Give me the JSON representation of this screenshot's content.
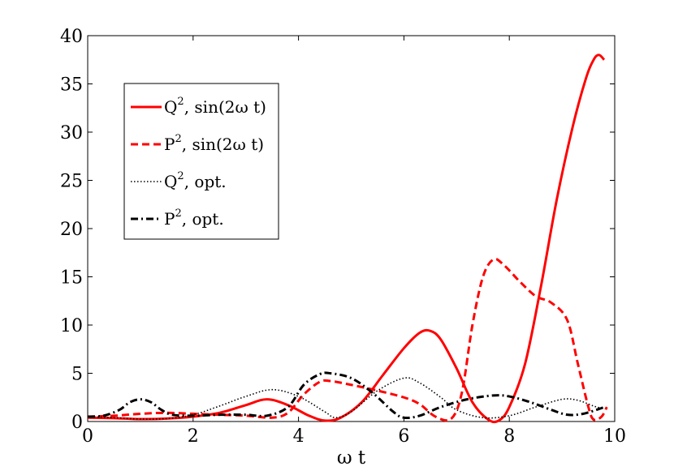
{
  "chart_data": {
    "type": "line",
    "xlabel": "ω t",
    "ylabel": "",
    "xlim": [
      0,
      10
    ],
    "ylim": [
      0,
      40
    ],
    "x_ticks": [
      "0",
      "2",
      "4",
      "6",
      "8",
      "10"
    ],
    "y_ticks": [
      "0",
      "5",
      "10",
      "15",
      "20",
      "25",
      "30",
      "35",
      "40"
    ],
    "grid": false,
    "legend_position": "upper-left",
    "series": [
      {
        "name": "Q², sin(2ω t)",
        "legend": {
          "base": "Q",
          "sup": "2",
          "rest": ", sin(2ω t)"
        },
        "color": "#ff0000",
        "style": "solid",
        "points": [
          [
            0,
            0.4
          ],
          [
            0.5,
            0.35
          ],
          [
            1.0,
            0.25
          ],
          [
            1.5,
            0.3
          ],
          [
            2.0,
            0.5
          ],
          [
            2.5,
            0.9
          ],
          [
            3.0,
            1.7
          ],
          [
            3.4,
            2.3
          ],
          [
            3.8,
            1.7
          ],
          [
            4.2,
            0.6
          ],
          [
            4.5,
            0.1
          ],
          [
            4.8,
            0.4
          ],
          [
            5.2,
            2.0
          ],
          [
            5.6,
            4.8
          ],
          [
            6.0,
            7.6
          ],
          [
            6.3,
            9.2
          ],
          [
            6.5,
            9.4
          ],
          [
            6.7,
            8.5
          ],
          [
            7.0,
            5.5
          ],
          [
            7.3,
            2.0
          ],
          [
            7.6,
            0.2
          ],
          [
            7.8,
            0.1
          ],
          [
            8.0,
            1.5
          ],
          [
            8.3,
            6.0
          ],
          [
            8.6,
            14.0
          ],
          [
            8.9,
            23.0
          ],
          [
            9.2,
            30.5
          ],
          [
            9.45,
            35.5
          ],
          [
            9.6,
            37.5
          ],
          [
            9.7,
            38.0
          ],
          [
            9.8,
            37.5
          ]
        ]
      },
      {
        "name": "P², sin(2ω t)",
        "legend": {
          "base": "P",
          "sup": "2",
          "rest": ", sin(2ω t)"
        },
        "color": "#ff0000",
        "style": "dashed",
        "points": [
          [
            0,
            0.5
          ],
          [
            0.5,
            0.6
          ],
          [
            1.0,
            0.8
          ],
          [
            1.5,
            0.9
          ],
          [
            2.0,
            0.8
          ],
          [
            2.5,
            0.7
          ],
          [
            3.0,
            0.6
          ],
          [
            3.5,
            0.4
          ],
          [
            3.8,
            0.9
          ],
          [
            4.1,
            2.8
          ],
          [
            4.4,
            4.1
          ],
          [
            4.6,
            4.2
          ],
          [
            5.0,
            3.8
          ],
          [
            5.5,
            3.2
          ],
          [
            6.0,
            2.5
          ],
          [
            6.3,
            1.8
          ],
          [
            6.6,
            0.5
          ],
          [
            6.9,
            0.3
          ],
          [
            7.1,
            3.0
          ],
          [
            7.3,
            10.0
          ],
          [
            7.5,
            15.0
          ],
          [
            7.7,
            16.8
          ],
          [
            7.9,
            16.2
          ],
          [
            8.2,
            14.5
          ],
          [
            8.5,
            13.0
          ],
          [
            8.8,
            12.3
          ],
          [
            9.1,
            10.5
          ],
          [
            9.3,
            6.0
          ],
          [
            9.5,
            1.5
          ],
          [
            9.6,
            0.2
          ],
          [
            9.75,
            0.5
          ],
          [
            9.85,
            1.5
          ]
        ]
      },
      {
        "name": "Q², opt.",
        "legend": {
          "base": "Q",
          "sup": "2",
          "rest": ", opt."
        },
        "color": "#000000",
        "style": "dotted",
        "points": [
          [
            0,
            0.5
          ],
          [
            0.5,
            0.4
          ],
          [
            1.0,
            0.25
          ],
          [
            1.5,
            0.3
          ],
          [
            2.0,
            0.7
          ],
          [
            2.5,
            1.6
          ],
          [
            3.0,
            2.6
          ],
          [
            3.5,
            3.3
          ],
          [
            4.0,
            2.6
          ],
          [
            4.5,
            1.0
          ],
          [
            4.7,
            0.4
          ],
          [
            5.0,
            1.0
          ],
          [
            5.5,
            3.2
          ],
          [
            6.0,
            4.5
          ],
          [
            6.3,
            4.0
          ],
          [
            6.7,
            2.5
          ],
          [
            7.0,
            1.2
          ],
          [
            7.5,
            0.4
          ],
          [
            8.0,
            0.6
          ],
          [
            8.5,
            1.5
          ],
          [
            9.0,
            2.3
          ],
          [
            9.3,
            2.2
          ],
          [
            9.6,
            1.6
          ],
          [
            9.8,
            1.3
          ]
        ]
      },
      {
        "name": "P², opt.",
        "legend": {
          "base": "P",
          "sup": "2",
          "rest": ", opt."
        },
        "color": "#000000",
        "style": "dashdot",
        "points": [
          [
            0,
            0.5
          ],
          [
            0.3,
            0.6
          ],
          [
            0.6,
            1.2
          ],
          [
            0.8,
            2.0
          ],
          [
            1.0,
            2.3
          ],
          [
            1.2,
            2.0
          ],
          [
            1.4,
            1.2
          ],
          [
            1.6,
            0.7
          ],
          [
            2.0,
            0.6
          ],
          [
            2.5,
            0.7
          ],
          [
            3.0,
            0.7
          ],
          [
            3.4,
            0.6
          ],
          [
            3.8,
            1.5
          ],
          [
            4.1,
            3.8
          ],
          [
            4.4,
            4.9
          ],
          [
            4.6,
            5.0
          ],
          [
            5.0,
            4.5
          ],
          [
            5.4,
            3.0
          ],
          [
            5.8,
            1.0
          ],
          [
            6.0,
            0.4
          ],
          [
            6.3,
            0.6
          ],
          [
            6.7,
            1.5
          ],
          [
            7.2,
            2.3
          ],
          [
            7.7,
            2.7
          ],
          [
            8.0,
            2.6
          ],
          [
            8.4,
            2.0
          ],
          [
            8.8,
            1.2
          ],
          [
            9.1,
            0.7
          ],
          [
            9.4,
            0.8
          ],
          [
            9.7,
            1.3
          ],
          [
            9.8,
            1.5
          ]
        ]
      }
    ]
  }
}
